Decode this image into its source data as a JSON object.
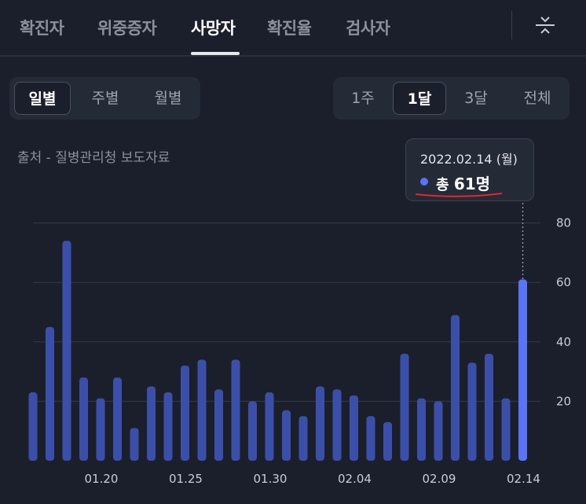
{
  "tabs": [
    {
      "label": "확진자",
      "active": false
    },
    {
      "label": "위중증자",
      "active": false
    },
    {
      "label": "사망자",
      "active": true
    },
    {
      "label": "확진율",
      "active": false
    },
    {
      "label": "검사자",
      "active": false
    }
  ],
  "icons": {
    "settings": "adjust-sliders-icon"
  },
  "period_toggle": {
    "items": [
      "일별",
      "주별",
      "월별"
    ],
    "selected": "일별"
  },
  "range_toggle": {
    "items": [
      "1주",
      "1달",
      "3달",
      "전체"
    ],
    "selected": "1달"
  },
  "source": "출처 - 질병관리청 보도자료",
  "tooltip": {
    "date": "2022.02.14 (월)",
    "label": "총",
    "value": "61명"
  },
  "colors": {
    "bar": "#3c4fa8",
    "bar_selected": "#5b73f5",
    "background": "#1b1f2b",
    "grid": "#343a48",
    "annotation_underline": "#e0282e"
  },
  "chart_data": {
    "type": "bar",
    "categories": [
      "01.16",
      "01.17",
      "01.18",
      "01.19",
      "01.20",
      "01.21",
      "01.22",
      "01.23",
      "01.24",
      "01.25",
      "01.26",
      "01.27",
      "01.28",
      "01.29",
      "01.30",
      "01.31",
      "02.01",
      "02.02",
      "02.03",
      "02.04",
      "02.05",
      "02.06",
      "02.07",
      "02.08",
      "02.09",
      "02.10",
      "02.11",
      "02.12",
      "02.13",
      "02.14"
    ],
    "values": [
      23,
      45,
      74,
      28,
      21,
      28,
      11,
      25,
      23,
      32,
      34,
      24,
      34,
      20,
      23,
      17,
      15,
      25,
      24,
      22,
      15,
      13,
      36,
      21,
      20,
      49,
      33,
      36,
      21,
      61
    ],
    "x_tick_labels": [
      "01.20",
      "01.25",
      "01.30",
      "02.04",
      "02.09",
      "02.14"
    ],
    "y_ticks": [
      20,
      40,
      60,
      80
    ],
    "ylim": [
      0,
      85
    ],
    "grid": true,
    "highlighted_category": "02.14",
    "title": "",
    "xlabel": "",
    "ylabel": ""
  }
}
